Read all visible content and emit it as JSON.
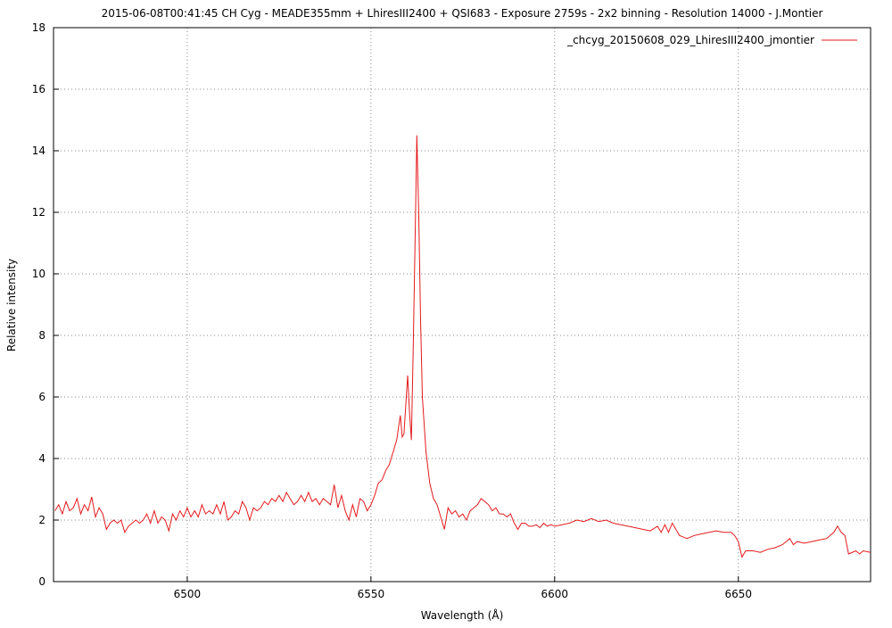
{
  "chart_data": {
    "type": "line",
    "title": "2015-06-08T00:41:45 CH Cyg - MEADE355mm + LhiresIII2400 + QSI683 - Exposure 2759s - 2x2 binning - Resolution 14000 - J.Montier",
    "xlabel": "Wavelength (Å)",
    "ylabel": "Relative intensity",
    "xlim": [
      6463.6,
      6686
    ],
    "ylim": [
      0,
      18
    ],
    "xticks": [
      6500,
      6550,
      6600,
      6650
    ],
    "yticks": [
      0,
      2,
      4,
      6,
      8,
      10,
      12,
      14,
      16,
      18
    ],
    "grid": true,
    "legend_position": "top-right",
    "series_color": "#e41a1c",
    "series": [
      {
        "name": "_chcyg_20150608_029_LhiresIII2400_jmontier",
        "x": [
          6464,
          6465,
          6466,
          6467,
          6468,
          6469,
          6470,
          6471,
          6472,
          6473,
          6474,
          6475,
          6476,
          6477,
          6478,
          6479,
          6480,
          6481,
          6482,
          6483,
          6484,
          6485,
          6486,
          6487,
          6488,
          6489,
          6490,
          6491,
          6492,
          6493,
          6494,
          6495,
          6496,
          6497,
          6498,
          6499,
          6500,
          6501,
          6502,
          6503,
          6504,
          6505,
          6506,
          6507,
          6508,
          6509,
          6510,
          6511,
          6512,
          6513,
          6514,
          6515,
          6516,
          6517,
          6518,
          6519,
          6520,
          6521,
          6522,
          6523,
          6524,
          6525,
          6526,
          6527,
          6528,
          6529,
          6530,
          6531,
          6532,
          6533,
          6534,
          6535,
          6536,
          6537,
          6538,
          6539,
          6540,
          6541,
          6542,
          6543,
          6544,
          6545,
          6546,
          6547,
          6548,
          6549,
          6550,
          6551,
          6552,
          6553,
          6554,
          6555,
          6556,
          6557,
          6558,
          6558.5,
          6559,
          6560,
          6560.5,
          6561,
          6561.5,
          6562,
          6562.5,
          6563,
          6563.5,
          6564,
          6565,
          6566,
          6567,
          6568,
          6569,
          6570,
          6571,
          6572,
          6573,
          6574,
          6575,
          6576,
          6577,
          6578,
          6579,
          6580,
          6581,
          6582,
          6583,
          6584,
          6585,
          6586,
          6587,
          6588,
          6589,
          6590,
          6591,
          6592,
          6593,
          6594,
          6595,
          6596,
          6597,
          6598,
          6599,
          6600,
          6602,
          6604,
          6606,
          6608,
          6610,
          6612,
          6614,
          6616,
          6618,
          6620,
          6622,
          6624,
          6626,
          6628,
          6629,
          6630,
          6631,
          6632,
          6633,
          6634,
          6636,
          6638,
          6640,
          6642,
          6644,
          6646,
          6648,
          6649,
          6650,
          6651,
          6652,
          6654,
          6656,
          6658,
          6660,
          6662,
          6664,
          6665,
          6666,
          6668,
          6670,
          6672,
          6674,
          6676,
          6677,
          6678,
          6679,
          6680,
          6682,
          6683,
          6684,
          6686
        ],
        "y": [
          2.3,
          2.5,
          2.2,
          2.6,
          2.3,
          2.4,
          2.7,
          2.2,
          2.5,
          2.3,
          2.75,
          2.1,
          2.4,
          2.2,
          1.7,
          1.9,
          2.0,
          1.9,
          2.0,
          1.6,
          1.8,
          1.9,
          2.0,
          1.9,
          2.0,
          2.2,
          1.9,
          2.3,
          1.9,
          2.1,
          2.0,
          1.65,
          2.2,
          2.0,
          2.3,
          2.1,
          2.4,
          2.1,
          2.3,
          2.1,
          2.5,
          2.2,
          2.3,
          2.2,
          2.5,
          2.2,
          2.6,
          2.0,
          2.1,
          2.3,
          2.2,
          2.6,
          2.4,
          2.0,
          2.4,
          2.3,
          2.4,
          2.6,
          2.5,
          2.7,
          2.6,
          2.8,
          2.6,
          2.9,
          2.7,
          2.5,
          2.6,
          2.8,
          2.6,
          2.9,
          2.6,
          2.7,
          2.5,
          2.7,
          2.6,
          2.5,
          3.15,
          2.4,
          2.8,
          2.3,
          2.0,
          2.5,
          2.1,
          2.7,
          2.6,
          2.3,
          2.5,
          2.8,
          3.2,
          3.3,
          3.6,
          3.8,
          4.2,
          4.6,
          5.4,
          4.7,
          4.8,
          6.7,
          5.5,
          4.6,
          7.5,
          11,
          14.5,
          12,
          8.5,
          6,
          4.2,
          3.2,
          2.7,
          2.5,
          2.1,
          1.7,
          2.4,
          2.2,
          2.3,
          2.1,
          2.2,
          2.0,
          2.3,
          2.4,
          2.5,
          2.7,
          2.6,
          2.5,
          2.3,
          2.4,
          2.2,
          2.2,
          2.1,
          2.2,
          1.9,
          1.7,
          1.9,
          1.9,
          1.8,
          1.8,
          1.85,
          1.75,
          1.9,
          1.8,
          1.85,
          1.8,
          1.85,
          1.9,
          2.0,
          1.95,
          2.05,
          1.95,
          2.0,
          1.9,
          1.85,
          1.8,
          1.75,
          1.7,
          1.65,
          1.8,
          1.6,
          1.85,
          1.6,
          1.9,
          1.7,
          1.5,
          1.4,
          1.5,
          1.55,
          1.6,
          1.65,
          1.6,
          1.6,
          1.5,
          1.3,
          0.8,
          1.0,
          1.0,
          0.95,
          1.05,
          1.1,
          1.2,
          1.4,
          1.2,
          1.3,
          1.25,
          1.3,
          1.35,
          1.4,
          1.6,
          1.8,
          1.6,
          1.5,
          0.9,
          1.0,
          0.9,
          1.0,
          0.95
        ]
      }
    ]
  }
}
